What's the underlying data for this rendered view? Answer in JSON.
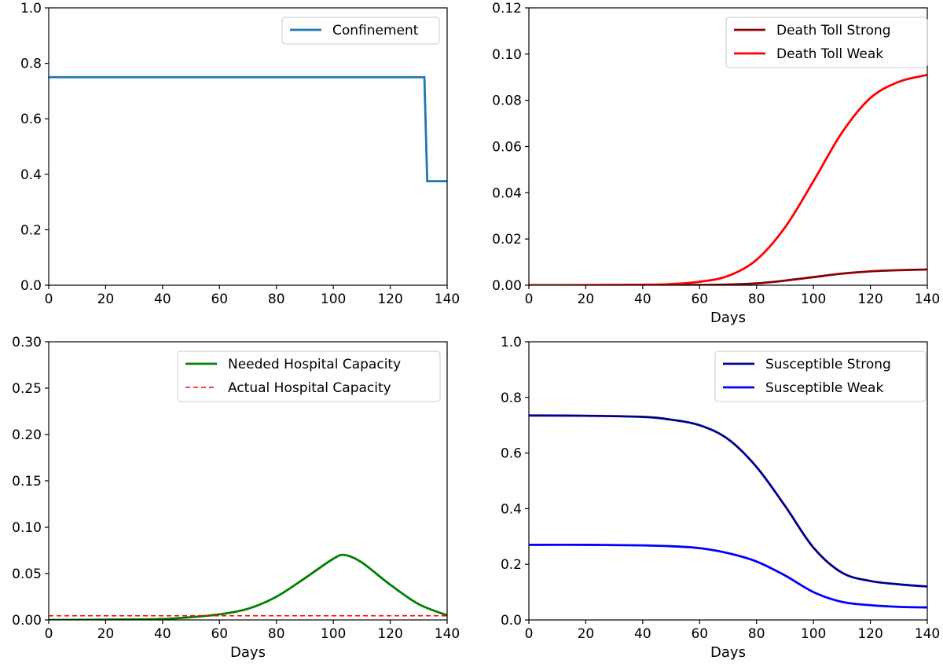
{
  "chart_data": [
    {
      "type": "line",
      "xlabel": "",
      "ylabel": "",
      "xlim": [
        0,
        140
      ],
      "ylim": [
        0,
        1.0
      ],
      "xticks": [
        "0",
        "20",
        "40",
        "60",
        "80",
        "100",
        "120",
        "140"
      ],
      "yticks": [
        "0.0",
        "0.2",
        "0.4",
        "0.6",
        "0.8",
        "1.0"
      ],
      "grid": false,
      "legend_position": "top-right",
      "series": [
        {
          "name": "Confinement",
          "color": "#1f77b4",
          "dash": "solid",
          "x": [
            0,
            132,
            133,
            140
          ],
          "y": [
            0.75,
            0.75,
            0.375,
            0.375
          ]
        }
      ]
    },
    {
      "type": "line",
      "xlabel": "Days",
      "ylabel": "",
      "xlim": [
        0,
        140
      ],
      "ylim": [
        0,
        0.12
      ],
      "xticks": [
        "0",
        "20",
        "40",
        "60",
        "80",
        "100",
        "120",
        "140"
      ],
      "yticks": [
        "0.00",
        "0.02",
        "0.04",
        "0.06",
        "0.08",
        "0.10",
        "0.12"
      ],
      "grid": false,
      "legend_position": "top-right",
      "series": [
        {
          "name": "Death Toll Strong",
          "color": "#8b0000",
          "dash": "solid",
          "x": [
            0,
            40,
            60,
            70,
            80,
            90,
            100,
            110,
            120,
            130,
            140
          ],
          "y": [
            0,
            0,
            0.0001,
            0.0003,
            0.0008,
            0.002,
            0.0035,
            0.005,
            0.006,
            0.0065,
            0.0068
          ]
        },
        {
          "name": "Death Toll Weak",
          "color": "#ff0000",
          "dash": "solid",
          "x": [
            0,
            40,
            50,
            60,
            70,
            80,
            90,
            100,
            110,
            120,
            130,
            140
          ],
          "y": [
            0,
            0.0002,
            0.0005,
            0.0015,
            0.004,
            0.011,
            0.025,
            0.045,
            0.066,
            0.081,
            0.088,
            0.091
          ]
        }
      ]
    },
    {
      "type": "line",
      "xlabel": "Days",
      "ylabel": "",
      "xlim": [
        0,
        140
      ],
      "ylim": [
        0,
        0.3
      ],
      "xticks": [
        "0",
        "20",
        "40",
        "60",
        "80",
        "100",
        "120",
        "140"
      ],
      "yticks": [
        "0.00",
        "0.05",
        "0.10",
        "0.15",
        "0.20",
        "0.25",
        "0.30"
      ],
      "grid": false,
      "legend_position": "top-right",
      "series": [
        {
          "name": "Needed Hospital Capacity",
          "color": "#008000",
          "dash": "solid",
          "x": [
            0,
            30,
            40,
            50,
            60,
            70,
            80,
            90,
            100,
            104,
            110,
            120,
            130,
            140
          ],
          "y": [
            0,
            0.0005,
            0.001,
            0.003,
            0.006,
            0.012,
            0.025,
            0.045,
            0.066,
            0.07,
            0.062,
            0.038,
            0.017,
            0.005
          ]
        },
        {
          "name": "Actual Hospital Capacity",
          "color": "#ff0000",
          "dash": "dashed",
          "x": [
            0,
            140
          ],
          "y": [
            0.0045,
            0.0045
          ]
        }
      ]
    },
    {
      "type": "line",
      "xlabel": "Days",
      "ylabel": "",
      "xlim": [
        0,
        140
      ],
      "ylim": [
        0,
        1.0
      ],
      "xticks": [
        "0",
        "20",
        "40",
        "60",
        "80",
        "100",
        "120",
        "140"
      ],
      "yticks": [
        "0.0",
        "0.2",
        "0.4",
        "0.6",
        "0.8",
        "1.0"
      ],
      "grid": false,
      "legend_position": "top-right",
      "series": [
        {
          "name": "Susceptible Strong",
          "color": "#00008b",
          "dash": "solid",
          "x": [
            0,
            20,
            40,
            50,
            60,
            70,
            80,
            90,
            100,
            110,
            120,
            130,
            140
          ],
          "y": [
            0.735,
            0.734,
            0.73,
            0.72,
            0.7,
            0.65,
            0.55,
            0.41,
            0.26,
            0.17,
            0.14,
            0.128,
            0.12
          ]
        },
        {
          "name": "Susceptible Weak",
          "color": "#0000ff",
          "dash": "solid",
          "x": [
            0,
            20,
            40,
            50,
            60,
            70,
            80,
            90,
            100,
            110,
            120,
            130,
            140
          ],
          "y": [
            0.27,
            0.27,
            0.268,
            0.265,
            0.258,
            0.24,
            0.21,
            0.16,
            0.1,
            0.065,
            0.053,
            0.047,
            0.045
          ]
        }
      ]
    }
  ]
}
